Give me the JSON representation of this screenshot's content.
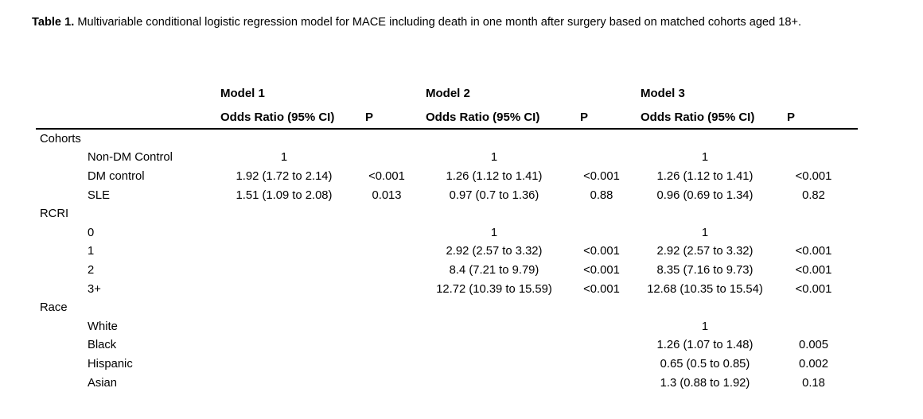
{
  "page": {
    "background_color": "#ffffff",
    "text_color": "#000000",
    "rule_color": "#000000"
  },
  "title": {
    "prefix": "Table 1.",
    "body": "Multivariable conditional logistic regression model for MACE including death in one month after surgery based on matched cohorts aged 18+."
  },
  "table": {
    "model_headers": [
      "Model 1",
      "Model 2",
      "Model 3"
    ],
    "or_header": "Odds Ratio (95% CI)",
    "p_header": "P",
    "sections": [
      {
        "name": "Cohorts",
        "rows": [
          {
            "label": "Non-DM Control",
            "m1_or": "1",
            "m1_p": "",
            "m2_or": "1",
            "m2_p": "",
            "m3_or": "1",
            "m3_p": ""
          },
          {
            "label": "DM control",
            "m1_or": "1.92 (1.72 to 2.14)",
            "m1_p": "<0.001",
            "m2_or": "1.26 (1.12 to 1.41)",
            "m2_p": "<0.001",
            "m3_or": "1.26 (1.12 to 1.41)",
            "m3_p": "<0.001"
          },
          {
            "label": "SLE",
            "m1_or": "1.51 (1.09 to 2.08)",
            "m1_p": "0.013",
            "m2_or": "0.97 (0.7 to 1.36)",
            "m2_p": "0.88",
            "m3_or": "0.96 (0.69 to 1.34)",
            "m3_p": "0.82"
          }
        ]
      },
      {
        "name": "RCRI",
        "rows": [
          {
            "label": "0",
            "m1_or": "",
            "m1_p": "",
            "m2_or": "1",
            "m2_p": "",
            "m3_or": "1",
            "m3_p": ""
          },
          {
            "label": "1",
            "m1_or": "",
            "m1_p": "",
            "m2_or": "2.92 (2.57 to 3.32)",
            "m2_p": "<0.001",
            "m3_or": "2.92 (2.57 to 3.32)",
            "m3_p": "<0.001"
          },
          {
            "label": "2",
            "m1_or": "",
            "m1_p": "",
            "m2_or": "8.4 (7.21 to 9.79)",
            "m2_p": "<0.001",
            "m3_or": "8.35 (7.16 to 9.73)",
            "m3_p": "<0.001"
          },
          {
            "label": "3+",
            "m1_or": "",
            "m1_p": "",
            "m2_or": "12.72 (10.39 to 15.59)",
            "m2_p": "<0.001",
            "m3_or": "12.68 (10.35 to 15.54)",
            "m3_p": "<0.001"
          }
        ]
      },
      {
        "name": "Race",
        "rows": [
          {
            "label": "White",
            "m1_or": "",
            "m1_p": "",
            "m2_or": "",
            "m2_p": "",
            "m3_or": "1",
            "m3_p": ""
          },
          {
            "label": "Black",
            "m1_or": "",
            "m1_p": "",
            "m2_or": "",
            "m2_p": "",
            "m3_or": "1.26 (1.07 to 1.48)",
            "m3_p": "0.005"
          },
          {
            "label": "Hispanic",
            "m1_or": "",
            "m1_p": "",
            "m2_or": "",
            "m2_p": "",
            "m3_or": "0.65 (0.5 to 0.85)",
            "m3_p": "0.002"
          },
          {
            "label": "Asian",
            "m1_or": "",
            "m1_p": "",
            "m2_or": "",
            "m2_p": "",
            "m3_or": "1.3 (0.88 to 1.92)",
            "m3_p": "0.18"
          }
        ]
      }
    ]
  }
}
